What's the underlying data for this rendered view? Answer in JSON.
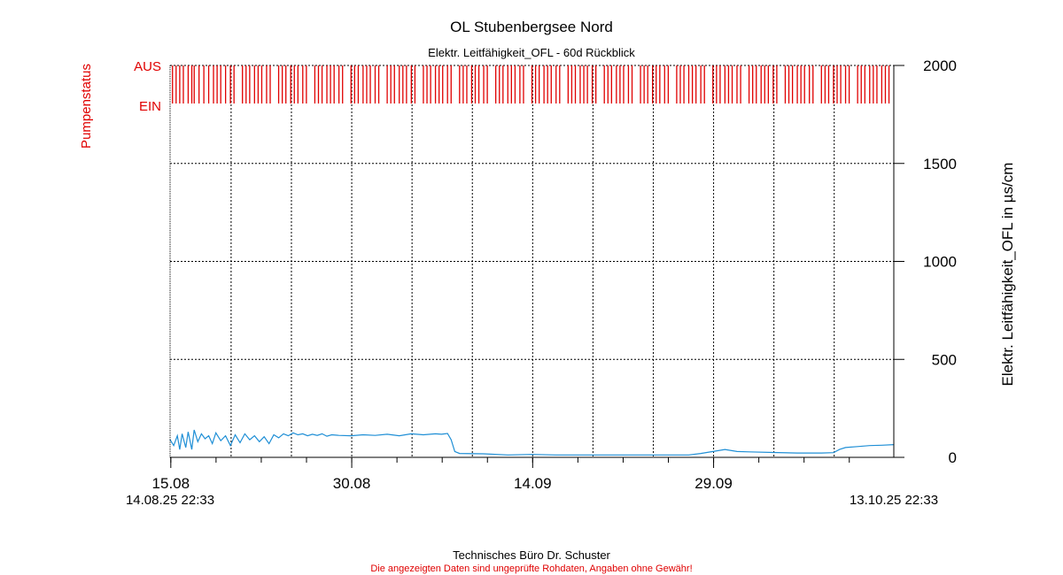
{
  "chart_data": {
    "type": "line",
    "title": "OL Stubenbergsee Nord",
    "subtitle": "Elektr. Leitfähigkeit_OFL - 60d Rückblick",
    "ylabel_right": "Elektr. Leitfähigkeit_OFL in µs/cm",
    "ylabel_left": "Pumpenstatus",
    "ylim": [
      0,
      2000
    ],
    "y_ticks": [
      "2000",
      "1500",
      "1000",
      "500",
      "0"
    ],
    "y_tick_values": [
      2000,
      1500,
      1000,
      500,
      0
    ],
    "x_range_days": [
      0,
      60
    ],
    "x_tick_labels": [
      "15.08",
      "30.08",
      "14.09",
      "29.09"
    ],
    "x_tick_days": [
      0.06,
      15.06,
      30.06,
      45.06
    ],
    "start_label": "14.08.25 22:33",
    "end_label": "13.10.25 22:33",
    "pump_labels": {
      "off": "AUS",
      "on": "EIN"
    },
    "grid": true,
    "colors": {
      "series": "#1f8fd6",
      "pump": "#e00000",
      "grid": "#000000"
    },
    "series": [
      {
        "x": [
          0,
          0.3,
          0.6,
          0.8,
          1.0,
          1.3,
          1.5,
          1.8,
          2.0,
          2.3,
          2.6,
          2.9,
          3.2,
          3.5,
          3.8,
          4.2,
          4.6,
          5.0,
          5.4,
          5.8,
          6.2,
          6.6,
          7.0,
          7.4,
          7.8,
          8.2,
          8.6,
          9.0,
          9.4,
          9.8,
          10.2,
          10.6,
          11.0,
          11.4,
          11.8,
          12.2,
          12.6,
          13.0,
          13.4,
          14.0,
          15.0,
          16.0,
          17.0,
          18.0,
          19.0,
          20.0,
          21.0,
          22.0,
          22.5,
          23.0,
          23.3,
          23.6,
          24.0,
          26.0,
          28.0,
          30.0,
          32.0,
          34.0,
          36.0,
          38.0,
          40.0,
          42.0,
          43.0,
          44.0,
          45.0,
          46.0,
          47.0,
          48.0,
          50.0,
          52.0,
          54.0,
          55.0,
          55.5,
          56.0,
          57.0,
          58.0,
          59.0,
          60.0
        ],
        "y": [
          90,
          60,
          110,
          40,
          120,
          50,
          130,
          40,
          140,
          80,
          120,
          95,
          110,
          70,
          125,
          85,
          110,
          60,
          115,
          75,
          120,
          90,
          110,
          80,
          105,
          70,
          115,
          100,
          120,
          110,
          125,
          115,
          120,
          110,
          118,
          112,
          120,
          108,
          115,
          112,
          110,
          115,
          112,
          118,
          110,
          120,
          115,
          120,
          118,
          122,
          90,
          30,
          20,
          18,
          12,
          15,
          12,
          12,
          12,
          12,
          12,
          12,
          12,
          20,
          30,
          40,
          30,
          28,
          25,
          22,
          22,
          24,
          40,
          50,
          55,
          60,
          62,
          65
        ]
      }
    ],
    "pump_events_days": [
      0.2,
      0.5,
      0.8,
      1.1,
      1.5,
      1.8,
      2.0,
      2.4,
      2.8,
      3.2,
      3.6,
      3.9,
      4.2,
      4.6,
      5.0,
      5.3,
      6.0,
      6.3,
      6.6,
      7.0,
      7.3,
      7.6,
      8.0,
      8.3,
      9.0,
      9.3,
      9.6,
      10.0,
      10.3,
      10.6,
      11.0,
      11.3,
      12.0,
      12.3,
      12.6,
      13.0,
      13.3,
      13.6,
      14.0,
      14.3,
      15.0,
      15.3,
      15.6,
      16.0,
      16.3,
      16.6,
      17.0,
      17.3,
      18.0,
      18.3,
      18.6,
      19.0,
      19.3,
      19.6,
      20.0,
      20.3,
      21.0,
      21.3,
      21.6,
      22.0,
      22.3,
      22.6,
      23.0,
      23.3,
      24.0,
      24.3,
      24.6,
      25.0,
      25.3,
      25.6,
      26.0,
      26.3,
      27.0,
      27.3,
      27.6,
      28.0,
      28.3,
      28.6,
      29.0,
      29.3,
      30.0,
      30.3,
      30.6,
      31.0,
      31.3,
      31.6,
      32.0,
      32.3,
      33.0,
      33.3,
      33.6,
      34.0,
      34.3,
      34.6,
      35.0,
      35.3,
      36.0,
      36.3,
      36.6,
      37.0,
      37.3,
      37.6,
      38.0,
      38.3,
      39.0,
      39.3,
      39.6,
      40.0,
      40.3,
      40.6,
      41.0,
      41.3,
      42.0,
      42.3,
      42.6,
      43.0,
      43.3,
      43.6,
      44.0,
      44.3,
      45.0,
      45.3,
      45.6,
      46.0,
      46.3,
      46.6,
      47.0,
      47.3,
      48.0,
      48.3,
      48.6,
      49.0,
      49.3,
      49.6,
      50.0,
      50.3,
      51.0,
      51.3,
      51.6,
      52.0,
      52.3,
      52.6,
      53.0,
      53.3,
      54.0,
      54.3,
      54.6,
      55.0,
      55.3,
      55.6,
      56.0,
      56.3,
      57.0,
      57.3,
      57.6,
      58.0,
      58.3,
      58.6,
      59.0,
      59.3,
      59.6
    ]
  },
  "footer": {
    "company": "Technisches Büro Dr. Schuster",
    "disclaimer": "Die angezeigten Daten sind ungeprüfte Rohdaten, Angaben ohne Gewähr!"
  }
}
